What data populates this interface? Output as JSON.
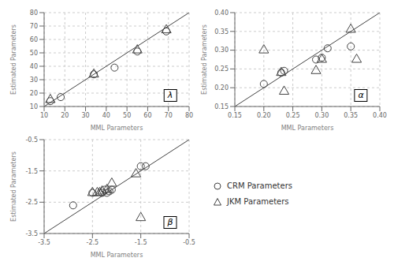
{
  "chart_data": [
    {
      "type": "scatter",
      "x_label": "MML Parameters",
      "y_label": "Estimated Parameters",
      "annotations": [
        "λ"
      ],
      "xlim": [
        10,
        80
      ],
      "ylim": [
        10,
        80
      ],
      "xticks": [
        10,
        20,
        30,
        40,
        50,
        60,
        70,
        80
      ],
      "yticks": [
        10,
        20,
        30,
        40,
        50,
        60,
        70,
        80
      ],
      "grid": true,
      "series": [
        {
          "name": "CRM Parameters",
          "color": "#444444",
          "marker": "circle",
          "x": [
            13,
            18,
            34,
            44,
            55,
            69
          ],
          "values": [
            14,
            17,
            34,
            39,
            51,
            66
          ]
        },
        {
          "name": "JKM Parameters",
          "color": "#444444",
          "marker": "triangle",
          "x": [
            13,
            34,
            55,
            69
          ],
          "values": [
            15,
            34,
            52,
            67
          ]
        }
      ]
    },
    {
      "type": "scatter",
      "x_label": "MML Parameters",
      "y_label": "Estimated Parameters",
      "annotations": [
        "α"
      ],
      "xlim": [
        0.15,
        0.4
      ],
      "ylim": [
        0.15,
        0.4
      ],
      "xticks": [
        0.15,
        {
          "value": 0.2,
          "label": "0.20"
        },
        0.25,
        {
          "value": 0.3,
          "label": "0.30"
        },
        0.35,
        {
          "value": 0.4,
          "label": "0.40"
        }
      ],
      "yticks": [
        0.15,
        {
          "value": 0.2,
          "label": "0.20"
        },
        0.25,
        {
          "value": 0.3,
          "label": "0.30"
        },
        0.35,
        {
          "value": 0.4,
          "label": "0.40"
        }
      ],
      "grid": true,
      "series": [
        {
          "name": "CRM Parameters",
          "color": "#444444",
          "marker": "circle",
          "x": [
            0.2,
            0.23,
            0.235,
            0.29,
            0.3,
            0.31,
            0.35
          ],
          "values": [
            0.21,
            0.24,
            0.245,
            0.275,
            0.28,
            0.305,
            0.31
          ]
        },
        {
          "name": "JKM Parameters",
          "color": "#444444",
          "marker": "triangle",
          "x": [
            0.2,
            0.23,
            0.235,
            0.29,
            0.3,
            0.35,
            0.36
          ],
          "values": [
            0.3,
            0.24,
            0.19,
            0.245,
            0.275,
            0.355,
            0.275
          ]
        }
      ]
    },
    {
      "type": "scatter",
      "x_label": "MML Parameters",
      "y_label": "Estimated Parameters",
      "annotations": [
        "β"
      ],
      "xlim": [
        -3.5,
        -0.5
      ],
      "ylim": [
        -3.5,
        -0.5
      ],
      "xticks": [
        -3.5,
        -2.5,
        -1.5,
        -0.5
      ],
      "yticks": [
        -3.5,
        -2.5,
        -1.5,
        -0.5
      ],
      "grid": true,
      "legend": "right",
      "series": [
        {
          "name": "CRM Parameters",
          "color": "#444444",
          "marker": "circle",
          "x": [
            -2.9,
            -2.5,
            -2.3,
            -2.25,
            -2.2,
            -2.15,
            -2.1,
            -1.5,
            -1.4
          ],
          "values": [
            -2.6,
            -2.2,
            -2.2,
            -2.1,
            -2.2,
            -2.15,
            -2.1,
            -1.35,
            -1.35
          ]
        },
        {
          "name": "JKM Parameters",
          "color": "#444444",
          "marker": "triangle",
          "x": [
            -2.5,
            -2.4,
            -2.35,
            -2.3,
            -2.2,
            -2.1,
            -1.6,
            -1.5
          ],
          "values": [
            -2.2,
            -2.2,
            -2.2,
            -2.15,
            -2.1,
            -1.9,
            -1.6,
            -3.0
          ]
        }
      ]
    }
  ]
}
